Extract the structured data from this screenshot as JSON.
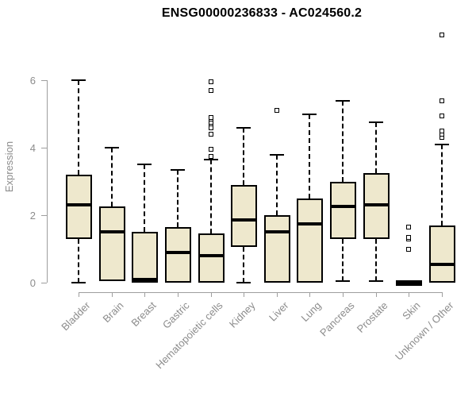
{
  "title": "ENSG00000236833 - AC024560.2",
  "colors": {
    "box_fill": "#EEE8CD",
    "box_border": "#000000",
    "median": "#000000",
    "axis_line": "#9E9E9E",
    "tick_text": "#8C8C8C",
    "title_text": "#000000",
    "background": "#FFFFFF"
  },
  "chart_data": {
    "type": "boxplot",
    "title": "ENSG00000236833 - AC024560.2",
    "xlabel": "",
    "ylabel": "Expression",
    "ylim": [
      0,
      6
    ],
    "yticks": [
      0,
      2,
      4,
      6
    ],
    "grid": false,
    "legend": null,
    "categories": [
      "Bladder",
      "Brain",
      "Breast",
      "Gastric",
      "Hematopoietic cells",
      "Kidney",
      "Liver",
      "Lung",
      "Pancreas",
      "Prostate",
      "Skin",
      "Unknown / Other"
    ],
    "boxes": [
      {
        "category": "Bladder",
        "whisker_low": 0.0,
        "q1": 1.3,
        "median": 2.3,
        "q3": 3.2,
        "whisker_high": 6.0,
        "outliers": []
      },
      {
        "category": "Brain",
        "whisker_low": 0.05,
        "q1": 0.05,
        "median": 1.5,
        "q3": 2.25,
        "whisker_high": 4.0,
        "outliers": []
      },
      {
        "category": "Breast",
        "whisker_low": 0.0,
        "q1": 0.0,
        "median": 0.05,
        "q3": 1.5,
        "whisker_high": 3.5,
        "outliers": []
      },
      {
        "category": "Gastric",
        "whisker_low": 0.0,
        "q1": 0.0,
        "median": 0.9,
        "q3": 1.65,
        "whisker_high": 3.35,
        "outliers": []
      },
      {
        "category": "Hematopoietic cells",
        "whisker_low": 0.0,
        "q1": 0.0,
        "median": 0.8,
        "q3": 1.45,
        "whisker_high": 3.65,
        "outliers": [
          3.75,
          3.95,
          4.4,
          4.6,
          4.7,
          4.75,
          4.85,
          4.9,
          5.7,
          5.95
        ]
      },
      {
        "category": "Kidney",
        "whisker_low": 0.0,
        "q1": 1.05,
        "median": 1.85,
        "q3": 2.9,
        "whisker_high": 4.6,
        "outliers": []
      },
      {
        "category": "Liver",
        "whisker_low": 0.0,
        "q1": 0.0,
        "median": 1.5,
        "q3": 2.0,
        "whisker_high": 3.8,
        "outliers": [
          5.1
        ]
      },
      {
        "category": "Lung",
        "whisker_low": 0.0,
        "q1": 0.0,
        "median": 1.75,
        "q3": 2.5,
        "whisker_high": 5.0,
        "outliers": []
      },
      {
        "category": "Pancreas",
        "whisker_low": 0.05,
        "q1": 1.3,
        "median": 2.25,
        "q3": 3.0,
        "whisker_high": 5.4,
        "outliers": []
      },
      {
        "category": "Prostate",
        "whisker_low": 0.05,
        "q1": 1.3,
        "median": 2.3,
        "q3": 3.25,
        "whisker_high": 4.75,
        "outliers": []
      },
      {
        "category": "Skin",
        "whisker_low": 0.0,
        "q1": 0.0,
        "median": 0.0,
        "q3": 0.0,
        "whisker_high": 0.0,
        "outliers": [
          1.0,
          1.3,
          1.35,
          1.65
        ]
      },
      {
        "category": "Unknown / Other",
        "whisker_low": 0.0,
        "q1": 0.0,
        "median": 0.55,
        "q3": 1.7,
        "whisker_high": 4.1,
        "outliers": [
          4.3,
          4.4,
          4.5,
          4.95,
          5.4,
          7.35
        ]
      }
    ]
  }
}
